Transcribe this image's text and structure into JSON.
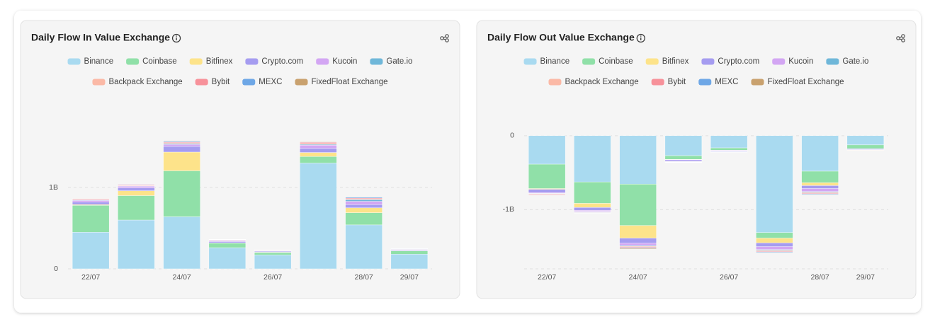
{
  "chart_data": [
    {
      "type": "bar",
      "stacked": true,
      "title": "Daily Flow In Value Exchange",
      "categories": [
        "22/07",
        null,
        "24/07",
        null,
        "26/07",
        null,
        "28/07",
        "29/07"
      ],
      "ylim": [
        0,
        2
      ],
      "yticks": [
        0,
        {
          "value": 1,
          "label": "1B"
        }
      ],
      "grid": true,
      "series": [
        {
          "name": "Binance",
          "color": "#a9daf0",
          "values": [
            0.45,
            0.6,
            0.64,
            0.26,
            0.17,
            1.3,
            0.54,
            0.18
          ]
        },
        {
          "name": "Coinbase",
          "color": "#90e0a8",
          "values": [
            0.33,
            0.3,
            0.565,
            0.055,
            0.03,
            0.08,
            0.15,
            0.04
          ]
        },
        {
          "name": "Bitfinex",
          "color": "#fde38a",
          "values": [
            0.01,
            0.06,
            0.23,
            0.005,
            0.005,
            0.05,
            0.06,
            0.003
          ]
        },
        {
          "name": "Crypto.com",
          "color": "#a59cf0",
          "values": [
            0.03,
            0.035,
            0.07,
            0.015,
            0.01,
            0.05,
            0.04,
            0.01
          ]
        },
        {
          "name": "Kucoin",
          "color": "#d3a6f3",
          "values": [
            0.02,
            0.02,
            0.025,
            0.01,
            0.005,
            0.04,
            0.04,
            0.005
          ]
        },
        {
          "name": "Gate.io",
          "color": "#6fb7d9",
          "values": [
            0.005,
            0.005,
            0.01,
            0.005,
            0.003,
            0.01,
            0.02,
            0.003
          ]
        },
        {
          "name": "Backpack Exchange",
          "color": "#fbb9a6",
          "values": [
            0.003,
            0.005,
            0.01,
            0.003,
            0.002,
            0.01,
            0.01,
            0.002
          ]
        },
        {
          "name": "Bybit",
          "color": "#f7919a",
          "values": [
            0.01,
            0.01,
            0.01,
            0.005,
            0.005,
            0.015,
            0.01,
            0.003
          ]
        },
        {
          "name": "MEXC",
          "color": "#6ea7e6",
          "values": [
            0.005,
            0.005,
            0.01,
            0.003,
            0.002,
            0.005,
            0.01,
            0.002
          ]
        },
        {
          "name": "FixedFloat Exchange",
          "color": "#c9a16e",
          "values": [
            0.002,
            0.003,
            0.005,
            0.002,
            0.002,
            0.005,
            0.005,
            0.002
          ]
        }
      ]
    },
    {
      "type": "bar",
      "stacked": true,
      "title": "Daily Flow Out Value Exchange",
      "categories": [
        "22/07",
        null,
        "24/07",
        null,
        "26/07",
        null,
        "28/07",
        "29/07"
      ],
      "ylim": [
        -1.8,
        0.4
      ],
      "yticks": [
        {
          "value": -1,
          "label": "-1B"
        },
        0
      ],
      "grid": true,
      "series": [
        {
          "name": "Binance",
          "color": "#a9daf0",
          "values": [
            -0.385,
            -0.625,
            -0.655,
            -0.27,
            -0.165,
            -1.31,
            -0.48,
            -0.125
          ]
        },
        {
          "name": "Coinbase",
          "color": "#90e0a8",
          "values": [
            -0.33,
            -0.29,
            -0.56,
            -0.05,
            -0.03,
            -0.075,
            -0.155,
            -0.05
          ]
        },
        {
          "name": "Bitfinex",
          "color": "#fde38a",
          "values": [
            -0.01,
            -0.055,
            -0.17,
            -0.005,
            -0.005,
            -0.065,
            -0.04,
            -0.003
          ]
        },
        {
          "name": "Crypto.com",
          "color": "#a59cf0",
          "values": [
            -0.045,
            -0.04,
            -0.07,
            -0.015,
            -0.01,
            -0.05,
            -0.04,
            -0.01
          ]
        },
        {
          "name": "Kucoin",
          "color": "#d3a6f3",
          "values": [
            -0.01,
            -0.015,
            -0.03,
            -0.01,
            -0.005,
            -0.04,
            -0.04,
            -0.005
          ]
        },
        {
          "name": "Gate.io",
          "color": "#6fb7d9",
          "values": [
            -0.005,
            -0.005,
            -0.01,
            -0.005,
            -0.002,
            -0.01,
            -0.01,
            -0.002
          ]
        },
        {
          "name": "Backpack Exchange",
          "color": "#fbb9a6",
          "values": [
            -0.005,
            -0.005,
            -0.01,
            -0.003,
            -0.002,
            -0.01,
            -0.01,
            -0.002
          ]
        },
        {
          "name": "Bybit",
          "color": "#f7919a",
          "values": [
            -0.01,
            -0.005,
            -0.01,
            -0.003,
            -0.002,
            -0.01,
            -0.01,
            -0.002
          ]
        },
        {
          "name": "MEXC",
          "color": "#6ea7e6",
          "values": [
            -0.005,
            -0.005,
            -0.01,
            -0.002,
            -0.002,
            -0.01,
            -0.01,
            -0.002
          ]
        },
        {
          "name": "FixedFloat Exchange",
          "color": "#c9a16e",
          "values": [
            -0.003,
            -0.003,
            -0.01,
            -0.002,
            -0.002,
            -0.005,
            -0.005,
            -0.002
          ]
        }
      ]
    }
  ]
}
